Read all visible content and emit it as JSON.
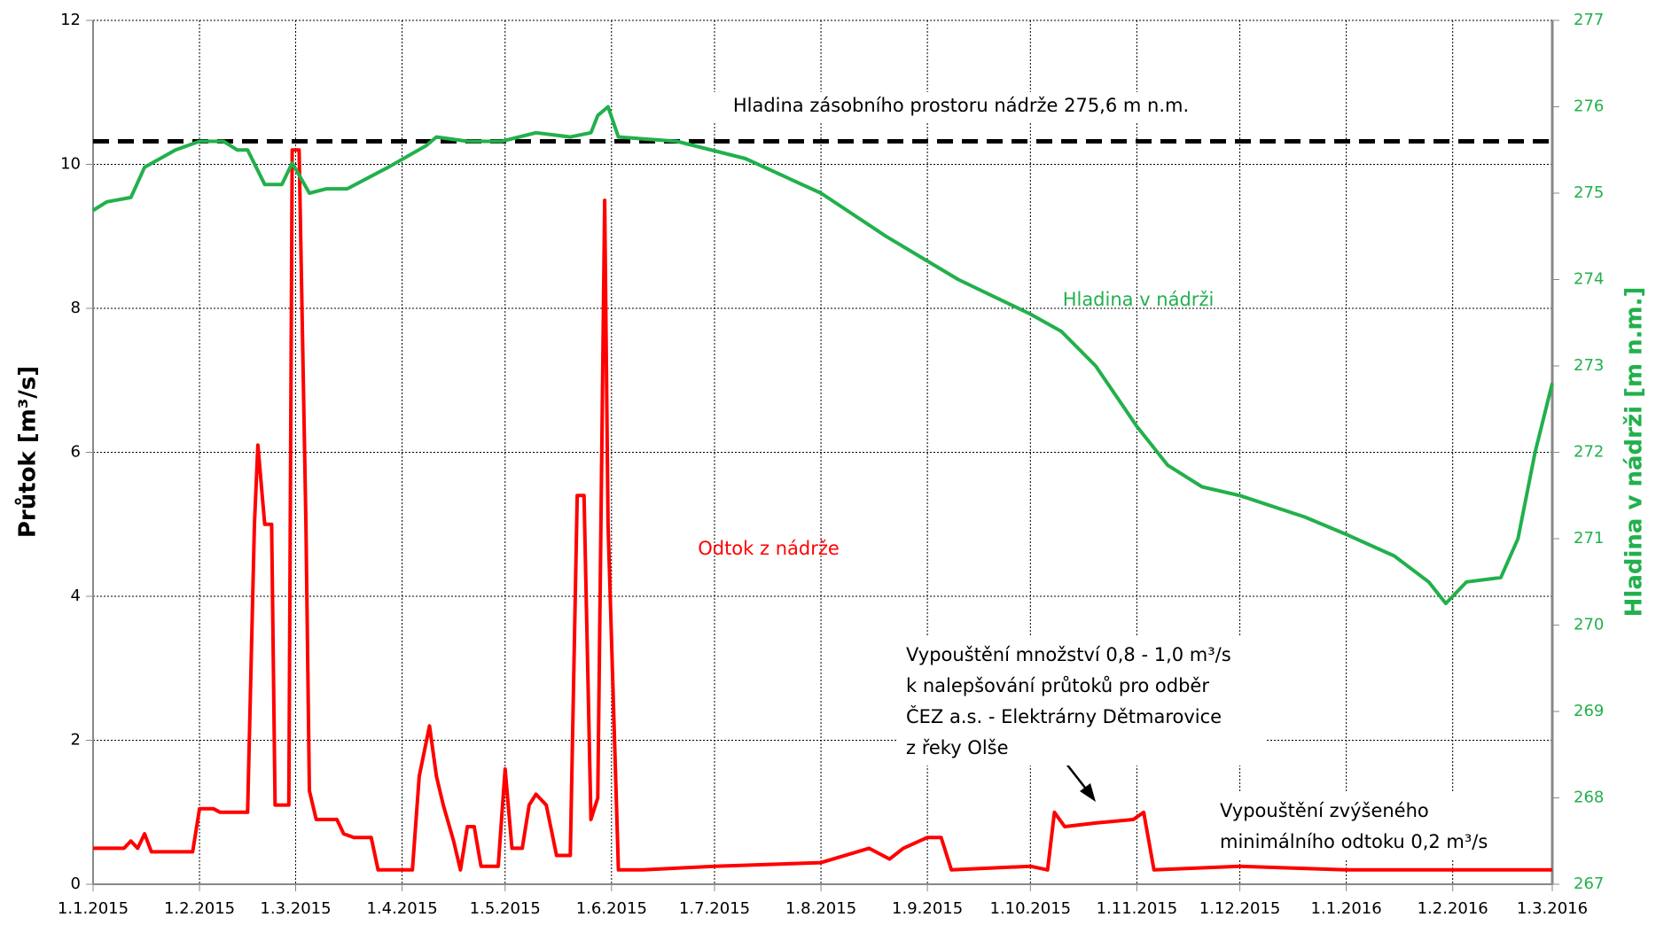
{
  "chart_data": {
    "type": "line",
    "ylabel": "Průtok [m³/s]",
    "y2label": "Hladina v nádrži [m n.m.]",
    "ylim": [
      0,
      12
    ],
    "yticks": [
      0,
      2,
      4,
      6,
      8,
      10,
      12
    ],
    "y2lim": [
      267,
      277
    ],
    "y2ticks": [
      267,
      268,
      269,
      270,
      271,
      272,
      273,
      274,
      275,
      276,
      277
    ],
    "xlim": [
      "1.1.2015",
      "1.3.2016"
    ],
    "xticks": [
      "1.1.2015",
      "1.2.2015",
      "1.3.2015",
      "1.4.2015",
      "1.5.2015",
      "1.6.2015",
      "1.7.2015",
      "1.8.2015",
      "1.9.2015",
      "1.10.2015",
      "1.11.2015",
      "1.12.2015",
      "1.1.2016",
      "1.2.2016",
      "1.3.2016"
    ],
    "grid": true,
    "series": [
      {
        "name": "Odtok z nádrže",
        "color": "#ff0000",
        "axis": "y",
        "x": [
          "1.1.2015",
          "10.1.2015",
          "12.1.2015",
          "14.1.2015",
          "16.1.2015",
          "18.1.2015",
          "30.1.2015",
          "1.2.2015",
          "5.2.2015",
          "7.2.2015",
          "15.2.2015",
          "17.2.2015",
          "18.2.2015",
          "20.2.2015",
          "22.2.2015",
          "23.2.2015",
          "25.2.2015",
          "27.2.2015",
          "28.2.2015",
          "2.3.2015",
          "4.3.2015",
          "5.3.2015",
          "7.3.2015",
          "13.3.2015",
          "15.3.2015",
          "18.3.2015",
          "23.3.2015",
          "25.3.2015",
          "4.4.2015",
          "6.4.2015",
          "9.4.2015",
          "11.4.2015",
          "13.4.2015",
          "16.4.2015",
          "18.4.2015",
          "20.4.2015",
          "22.4.2015",
          "24.4.2015",
          "29.4.2015",
          "1.5.2015",
          "3.5.2015",
          "6.5.2015",
          "8.5.2015",
          "10.5.2015",
          "13.5.2015",
          "16.5.2015",
          "20.5.2015",
          "22.5.2015",
          "24.5.2015",
          "26.5.2015",
          "28.5.2015",
          "30.5.2015",
          "31.5.2015",
          "3.6.2015",
          "10.6.2015",
          "1.7.2015",
          "1.8.2015",
          "15.8.2015",
          "21.8.2015",
          "25.8.2015",
          "1.9.2015",
          "5.9.2015",
          "8.9.2015",
          "1.10.2015",
          "6.10.2015",
          "8.10.2015",
          "11.10.2015",
          "20.10.2015",
          "31.10.2015",
          "3.11.2015",
          "6.11.2015",
          "1.12.2015",
          "1.1.2016",
          "1.3.2016"
        ],
        "values": [
          0.5,
          0.5,
          0.6,
          0.5,
          0.7,
          0.45,
          0.45,
          1.05,
          1.05,
          1.0,
          1.0,
          5.0,
          6.1,
          5.0,
          5.0,
          1.1,
          1.1,
          1.1,
          10.2,
          10.2,
          5.0,
          1.3,
          0.9,
          0.9,
          0.7,
          0.65,
          0.65,
          0.2,
          0.2,
          1.5,
          2.2,
          1.5,
          1.1,
          0.6,
          0.2,
          0.8,
          0.8,
          0.25,
          0.25,
          1.6,
          0.5,
          0.5,
          1.1,
          1.25,
          1.1,
          0.4,
          0.4,
          5.4,
          5.4,
          0.9,
          1.2,
          9.5,
          5.0,
          0.2,
          0.2,
          0.25,
          0.3,
          0.5,
          0.35,
          0.5,
          0.65,
          0.65,
          0.2,
          0.25,
          0.2,
          1.0,
          0.8,
          0.85,
          0.9,
          1.0,
          0.2,
          0.25,
          0.2,
          0.2
        ]
      },
      {
        "name": "Hladina v nádrži",
        "color": "#22b04c",
        "axis": "y2",
        "x": [
          "1.1.2015",
          "5.1.2015",
          "12.1.2015",
          "16.1.2015",
          "25.1.2015",
          "1.2.2015",
          "8.2.2015",
          "12.2.2015",
          "15.2.2015",
          "20.2.2015",
          "25.2.2015",
          "28.2.2015",
          "5.3.2015",
          "10.3.2015",
          "16.3.2015",
          "28.3.2015",
          "8.4.2015",
          "11.4.2015",
          "20.4.2015",
          "30.4.2015",
          "10.5.2015",
          "20.5.2015",
          "26.5.2015",
          "28.5.2015",
          "31.5.2015",
          "3.6.2015",
          "20.6.2015",
          "10.7.2015",
          "1.8.2015",
          "20.8.2015",
          "10.9.2015",
          "1.10.2015",
          "10.10.2015",
          "20.10.2015",
          "1.11.2015",
          "10.11.2015",
          "20.11.2015",
          "1.12.2015",
          "20.12.2015",
          "1.1.2016",
          "15.1.2016",
          "25.1.2016",
          "30.1.2016",
          "5.2.2016",
          "15.2.2016",
          "20.2.2016",
          "25.2.2016",
          "1.3.2016"
        ],
        "values": [
          274.8,
          274.9,
          274.95,
          275.3,
          275.5,
          275.6,
          275.6,
          275.5,
          275.5,
          275.1,
          275.1,
          275.35,
          275.0,
          275.05,
          275.05,
          275.3,
          275.55,
          275.65,
          275.6,
          275.6,
          275.7,
          275.65,
          275.7,
          275.9,
          276.0,
          275.65,
          275.6,
          275.4,
          275.0,
          274.5,
          274.0,
          273.6,
          273.4,
          273.0,
          272.3,
          271.85,
          271.6,
          271.5,
          271.25,
          271.05,
          270.8,
          270.5,
          270.25,
          270.5,
          270.55,
          271.0,
          272.0,
          272.8
        ]
      }
    ],
    "reference_line": {
      "value": 275.6,
      "axis": "y2",
      "label": "Hladina zásobního prostoru nádrže  275,6 m n.m."
    },
    "annotations": [
      {
        "lines": [
          "Vypouštění množství 0,8 - 1,0 m³/s",
          "k nalepšování průtoků pro odběr",
          "ČEZ a.s. - Elektrárny Dětmarovice",
          "z řeky Olše"
        ]
      },
      {
        "lines": [
          "Vypouštění zvýšeného",
          "minimálního odtoku 0,2 m³/s"
        ]
      }
    ]
  }
}
